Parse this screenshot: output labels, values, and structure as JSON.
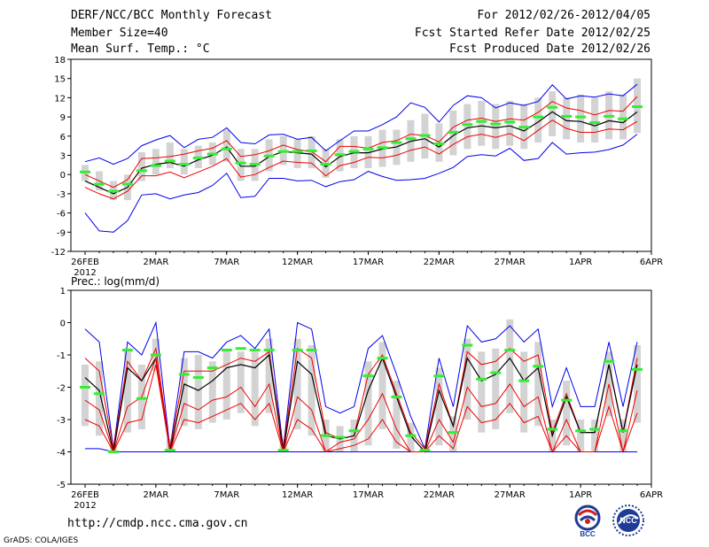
{
  "header": {
    "title": "DERF/NCC/BCC Monthly Forecast",
    "member_size": "Member Size=40",
    "variable": "Mean Surf. Temp.: °C",
    "for_range": "For 2012/02/26-2012/04/05",
    "started": "Fcst Started Refer Date 2012/02/25",
    "produced": "Fcst Produced Date 2012/02/26"
  },
  "footer": {
    "url": "http://cmdp.ncc.cma.gov.cn",
    "grads": "GrADS: COLA/IGES",
    "logo_bcc": "BCC",
    "logo_ncc": "NCC"
  },
  "colors": {
    "envelope": "#0000ee",
    "spread": "#ee0000",
    "mean": "#000000",
    "box": "#d3d3d3",
    "observed": "#33ee33"
  },
  "chart_data": [
    {
      "type": "line",
      "title": "Mean Surf. Temp.: °C",
      "ylabel": "°C",
      "ylim": [
        -12,
        18
      ],
      "yticks": [
        -12,
        -9,
        -6,
        -3,
        0,
        3,
        6,
        9,
        12,
        15,
        18
      ],
      "xtick_labels": [
        {
          "day": 0,
          "label": "26FEB",
          "sub": "2012"
        },
        {
          "day": 5,
          "label": "2MAR"
        },
        {
          "day": 10,
          "label": "7MAR"
        },
        {
          "day": 15,
          "label": "12MAR"
        },
        {
          "day": 20,
          "label": "17MAR"
        },
        {
          "day": 25,
          "label": "22MAR"
        },
        {
          "day": 30,
          "label": "27MAR"
        },
        {
          "day": 35,
          "label": "1APR"
        },
        {
          "day": 40,
          "label": "6APR"
        }
      ],
      "x_days": [
        0,
        1,
        2,
        3,
        4,
        5,
        6,
        7,
        8,
        9,
        10,
        11,
        12,
        13,
        14,
        15,
        16,
        17,
        18,
        19,
        20,
        21,
        22,
        23,
        24,
        25,
        26,
        27,
        28,
        29,
        30,
        31,
        32,
        33,
        34,
        35,
        36,
        37,
        38,
        39
      ],
      "series": [
        {
          "name": "max",
          "color_key": "envelope",
          "values": [
            2,
            2.6,
            1.6,
            2.5,
            4.5,
            5.4,
            6.1,
            4.2,
            5.5,
            5.8,
            7.3,
            5,
            4.8,
            6.2,
            6.3,
            5.5,
            5.8,
            3.7,
            5.3,
            6.8,
            6.8,
            7.8,
            9,
            11.2,
            10.5,
            8.2,
            10.8,
            12.3,
            12,
            10.4,
            11.2,
            10.8,
            11.4,
            14,
            11.8,
            12.3,
            12.1,
            12.6,
            12.3,
            14.1
          ]
        },
        {
          "name": "upper",
          "color_key": "spread",
          "values": [
            0,
            -1,
            -2,
            -0.8,
            2.5,
            2.6,
            2.8,
            3.2,
            3.7,
            4.1,
            5.3,
            2.8,
            3.1,
            3.7,
            4.6,
            3.9,
            3.6,
            2,
            4.4,
            4.4,
            4.1,
            5,
            5.3,
            6.3,
            6.1,
            5.1,
            7.4,
            8.5,
            8.8,
            8.3,
            8.7,
            8.5,
            9.7,
            11.4,
            10.4,
            10,
            9.3,
            10,
            9.9,
            12.2
          ]
        },
        {
          "name": "mean",
          "color_key": "mean",
          "values": [
            -1,
            -2,
            -3,
            -2,
            1,
            1.6,
            1.9,
            1.3,
            2.3,
            3,
            4.3,
            1.3,
            1.3,
            2.8,
            3.6,
            3.4,
            3.2,
            1.2,
            2.8,
            3.4,
            3.4,
            4,
            4.3,
            5.2,
            5.6,
            4.3,
            6.1,
            7.3,
            7.6,
            7.3,
            7.6,
            6.8,
            8.2,
            9.8,
            8.4,
            8.3,
            7.6,
            8.4,
            8.1,
            9.8
          ]
        },
        {
          "name": "lower",
          "color_key": "spread",
          "values": [
            -2,
            -3,
            -3.8,
            -2.6,
            -0.2,
            -0.2,
            0.4,
            -0.5,
            0.4,
            1.3,
            2.5,
            -0.4,
            0,
            1.1,
            2.1,
            1.9,
            1.8,
            -0.2,
            1.4,
            1.9,
            2.7,
            2.6,
            3,
            3.8,
            4.3,
            3.2,
            4.7,
            5.9,
            6.3,
            5.8,
            6.4,
            5.3,
            6.9,
            8.5,
            7.2,
            6.6,
            6.6,
            7.1,
            7,
            8.3
          ]
        },
        {
          "name": "min",
          "color_key": "envelope",
          "values": [
            -6,
            -8.8,
            -9,
            -7.2,
            -3.2,
            -3,
            -3.8,
            -3.2,
            -2.8,
            -1.7,
            0.2,
            -3.6,
            -3.4,
            -0.6,
            -0.6,
            -1,
            -0.9,
            -1.9,
            -1.1,
            -0.8,
            0.5,
            -0.3,
            -0.9,
            -0.8,
            -0.6,
            0.2,
            1.1,
            2.8,
            3.1,
            2.9,
            4.1,
            2.2,
            2.5,
            5,
            3.2,
            3.4,
            3.5,
            3.9,
            4.6,
            6.3
          ]
        }
      ],
      "box_low": [
        -1,
        -2.5,
        -4,
        -4,
        -1,
        0,
        1,
        0,
        1,
        1.5,
        2,
        -1,
        -1,
        0.5,
        1.5,
        1,
        1,
        -0.5,
        0.5,
        1,
        1,
        1.2,
        1.5,
        2,
        2.5,
        2,
        3,
        4,
        4.5,
        4,
        4.5,
        4,
        5,
        6,
        5.5,
        5,
        5,
        5.5,
        5.5,
        6.5
      ],
      "box_high": [
        1.5,
        0.5,
        -1,
        0,
        3.5,
        4,
        5,
        4,
        4.5,
        5,
        7,
        4,
        4,
        5.5,
        6,
        5.5,
        6,
        4,
        5.5,
        6,
        6,
        7,
        7,
        8.5,
        9.5,
        8,
        10,
        11,
        11.5,
        11,
        11.5,
        11,
        12,
        13,
        12,
        12.5,
        12,
        13,
        12.5,
        15
      ],
      "observed": [
        0.4,
        -1.5,
        -2.6,
        -1.5,
        0.6,
        1.4,
        2.1,
        1.6,
        2.6,
        3.2,
        4,
        1.8,
        1.6,
        2.9,
        3.6,
        3.6,
        3.7,
        1.6,
        3.1,
        3.6,
        4,
        4.2,
        5,
        5.6,
        6.1,
        4.8,
        6.6,
        7.8,
        8.3,
        7.9,
        8.2,
        7.4,
        9,
        10.5,
        9.1,
        9,
        8.1,
        9.1,
        8.7,
        10.6
      ]
    },
    {
      "type": "line",
      "title": "Prec.: log(mm/d)",
      "ylabel": "log(mm/d)",
      "ylim": [
        -5,
        1
      ],
      "yticks": [
        -5,
        -4,
        -3,
        -2,
        -1,
        0,
        1
      ],
      "xtick_labels": [
        {
          "day": 0,
          "label": "26FEB",
          "sub": "2012"
        },
        {
          "day": 5,
          "label": "2MAR"
        },
        {
          "day": 10,
          "label": "7MAR"
        },
        {
          "day": 15,
          "label": "12MAR"
        },
        {
          "day": 20,
          "label": "17MAR"
        },
        {
          "day": 25,
          "label": "22MAR"
        },
        {
          "day": 30,
          "label": "27MAR"
        },
        {
          "day": 35,
          "label": "1APR"
        },
        {
          "day": 40,
          "label": "6APR"
        }
      ],
      "x_days": [
        0,
        1,
        2,
        3,
        4,
        5,
        6,
        7,
        8,
        9,
        10,
        11,
        12,
        13,
        14,
        15,
        16,
        17,
        18,
        19,
        20,
        21,
        22,
        23,
        24,
        25,
        26,
        27,
        28,
        29,
        30,
        31,
        32,
        33,
        34,
        35,
        36,
        37,
        38,
        39
      ],
      "series": [
        {
          "name": "max",
          "color_key": "envelope",
          "values": [
            -0.2,
            -0.6,
            -3.9,
            -0.6,
            -1,
            0,
            -3.9,
            -0.9,
            -0.9,
            -1.1,
            -0.6,
            -0.4,
            -0.8,
            -0.2,
            -3.9,
            0,
            -0.2,
            -2.6,
            -2.8,
            -2.6,
            -0.8,
            -0.4,
            -1.6,
            -2.9,
            -3.9,
            -1.1,
            -2.6,
            -0.1,
            -0.6,
            -0.5,
            -0.1,
            -0.6,
            -0.2,
            -2.6,
            -1.4,
            -2.6,
            -2.6,
            -0.6,
            -2.6,
            -0.6
          ]
        },
        {
          "name": "upper",
          "color_key": "spread",
          "values": [
            -1.1,
            -1.5,
            -3.9,
            -1.2,
            -1.8,
            -0.8,
            -3.9,
            -1.5,
            -1.5,
            -1.5,
            -1.3,
            -1.1,
            -1.2,
            -0.9,
            -3.9,
            -0.8,
            -1.1,
            -3.4,
            -3.6,
            -3.5,
            -1.6,
            -1,
            -2.2,
            -3.4,
            -3.9,
            -1.9,
            -3.2,
            -0.9,
            -1.3,
            -1.2,
            -0.8,
            -1.2,
            -1,
            -3.4,
            -2.2,
            -3.4,
            -3.4,
            -1.3,
            -3.4,
            -1.1
          ]
        },
        {
          "name": "mean",
          "color_key": "mean",
          "values": [
            -1.7,
            -2.1,
            -4,
            -1.4,
            -1.8,
            -1.1,
            -4,
            -1.9,
            -2.1,
            -1.8,
            -1.4,
            -1.3,
            -1.4,
            -1,
            -4,
            -1.2,
            -1.6,
            -3.5,
            -3.6,
            -3.5,
            -2.1,
            -1.1,
            -2.3,
            -3.5,
            -4,
            -2.1,
            -3.2,
            -1.1,
            -1.8,
            -1.6,
            -1.1,
            -1.8,
            -1.4,
            -3.5,
            -2.3,
            -3.4,
            -3.4,
            -1.3,
            -3.4,
            -1.3
          ]
        },
        {
          "name": "lower",
          "color_key": "spread",
          "values": [
            -2.4,
            -2.7,
            -4,
            -2.6,
            -2.3,
            -1.1,
            -4,
            -2.5,
            -2.7,
            -2.4,
            -2.3,
            -2,
            -2.6,
            -1.9,
            -4,
            -2.3,
            -2.7,
            -4,
            -3.7,
            -3.6,
            -3,
            -2.2,
            -3.3,
            -4,
            -4,
            -3,
            -3.7,
            -2,
            -2.6,
            -2.5,
            -1.9,
            -2.6,
            -2.3,
            -4,
            -3,
            -4,
            -4,
            -1.9,
            -4,
            -2.1
          ]
        },
        {
          "name": "min",
          "color_key": "envelope",
          "values": [
            -3.9,
            -3.9,
            -4,
            -4,
            -4,
            -4,
            -4,
            -4,
            -4,
            -4,
            -4,
            -4,
            -4,
            -4,
            -4,
            -4,
            -4,
            -4,
            -4,
            -4,
            -4,
            -4,
            -4,
            -4,
            -4,
            -4,
            -4,
            -4,
            -4,
            -4,
            -4,
            -4,
            -4,
            -4,
            -4,
            -4,
            -4,
            -4,
            -4,
            -4
          ]
        },
        {
          "name": "low2",
          "color_key": "spread",
          "values": [
            -3,
            -3.2,
            -4,
            -3.1,
            -3,
            -1.3,
            -4,
            -3,
            -3.1,
            -2.9,
            -2.7,
            -2.5,
            -3,
            -2.5,
            -4,
            -3,
            -3.3,
            -4,
            -3.9,
            -3.8,
            -3.6,
            -3,
            -3.7,
            -4,
            -4,
            -3.5,
            -3.9,
            -2.6,
            -3.1,
            -3,
            -2.5,
            -3.1,
            -2.9,
            -4,
            -3.5,
            -4,
            -4,
            -2.6,
            -4,
            -2.8
          ]
        }
      ],
      "box_low": [
        -3.2,
        -3.5,
        -4,
        -3.4,
        -3.3,
        -1.5,
        -4,
        -3.2,
        -3.3,
        -3.1,
        -3,
        -2.8,
        -3.2,
        -2.8,
        -4,
        -3.3,
        -3.5,
        -4,
        -4,
        -4,
        -3.8,
        -3.3,
        -3.9,
        -4,
        -4,
        -3.8,
        -4,
        -3,
        -3.4,
        -3.3,
        -2.8,
        -3.4,
        -3.2,
        -4,
        -3.8,
        -4,
        -4,
        -2.9,
        -4,
        -3.1
      ],
      "box_high": [
        -1.3,
        -1.2,
        -3.8,
        -0.8,
        -1.3,
        -0.5,
        -3.6,
        -1.1,
        -1,
        -1.2,
        -0.8,
        -0.9,
        -0.9,
        -0.5,
        -3.6,
        -0.5,
        -0.7,
        -3,
        -3.2,
        -3,
        -1.2,
        -0.6,
        -1.8,
        -3.1,
        -3.8,
        -1.4,
        -2.9,
        -0.5,
        -0.9,
        -0.8,
        0.1,
        -0.9,
        -0.6,
        -3,
        -1.8,
        -3,
        -3,
        -0.9,
        -3,
        -0.7
      ],
      "observed": [
        -2,
        -2.2,
        -4,
        -0.85,
        -2.35,
        -1,
        -3.95,
        -1.6,
        -1.7,
        -1.4,
        -0.85,
        -0.8,
        -0.85,
        -0.85,
        -3.95,
        -0.85,
        -0.85,
        -3.5,
        -3.55,
        -3.35,
        -1.65,
        -1.1,
        -2.3,
        -3.5,
        -3.95,
        -1.65,
        -3.4,
        -0.7,
        -1.75,
        -1.55,
        -0.85,
        -1.8,
        -1.35,
        -3.3,
        -2.4,
        -3.35,
        -3.3,
        -1.2,
        -3.35,
        -1.45
      ]
    }
  ]
}
